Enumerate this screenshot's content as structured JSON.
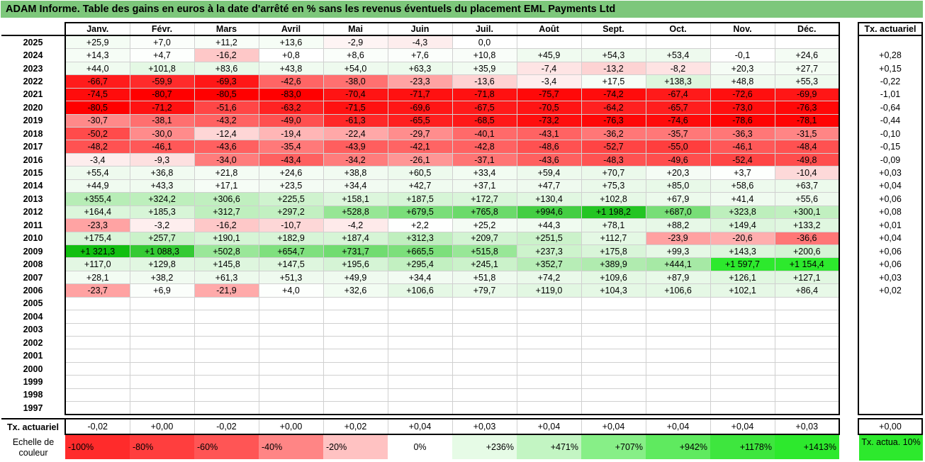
{
  "title": "ADAM Informe. Table des gains en euros à la date d'arrêté en % sans les revenus éventuels du placement EML Payments Ltd",
  "months": [
    "Janv.",
    "Févr.",
    "Mars",
    "Avril",
    "Mai",
    "Juin",
    "Juil.",
    "Août",
    "Sept.",
    "Oct.",
    "Nov.",
    "Déc."
  ],
  "annual_header": "Tx. actuariel",
  "rows": [
    {
      "year": "2025",
      "values": [
        "+25,9",
        "+7,0",
        "+11,2",
        "+13,6",
        "-2,9",
        "-4,3",
        "0,0",
        "",
        "",
        "",
        "",
        ""
      ],
      "colors": [
        "#f4fcf4",
        "#fbfefb",
        "#f8fdf8",
        "#f6fdf6",
        "#fef4f4",
        "#fdeded",
        "#ffffff",
        "",
        "",
        "",
        "",
        ""
      ],
      "annual": "",
      "annual_color": ""
    },
    {
      "year": "2024",
      "values": [
        "+14,3",
        "+4,7",
        "-16,2",
        "+0,8",
        "+8,6",
        "+7,6",
        "+10,8",
        "+45,9",
        "+54,3",
        "+53,4",
        "-0,1",
        "+24,6"
      ],
      "colors": [
        "#f6fdf6",
        "#fdfffd",
        "#fec8c8",
        "#ffffff",
        "#fafefa",
        "#fbfefb",
        "#f9fdf9",
        "#f0fbf0",
        "#eefaee",
        "#eefaee",
        "#ffffff",
        "#f4fcf4"
      ],
      "annual": "+0,28",
      "annual_color": ""
    },
    {
      "year": "2023",
      "values": [
        "+44,0",
        "+101,8",
        "+83,6",
        "+43,8",
        "+54,0",
        "+63,3",
        "+35,9",
        "-7,4",
        "-13,2",
        "-8,2",
        "+20,3",
        "+27,7"
      ],
      "colors": [
        "#f0fbf0",
        "#e4f8e4",
        "#e8f9e8",
        "#f0fbf0",
        "#eefaee",
        "#ecfaec",
        "#f1fbf1",
        "#fee4e4",
        "#fdd3d3",
        "#fee3e3",
        "#f5fcf5",
        "#f3fcf3"
      ],
      "annual": "+0,15",
      "annual_color": ""
    },
    {
      "year": "2022",
      "values": [
        "-66,7",
        "-59,9",
        "-69,3",
        "-42,6",
        "-38,0",
        "-23,3",
        "-13,6",
        "-3,4",
        "+17,5",
        "+138,3",
        "+48,8",
        "+55,3"
      ],
      "colors": [
        "#ff1c1c",
        "#ff2b2b",
        "#ff1717",
        "#ff6565",
        "#ff7070",
        "#ffa3a3",
        "#fed2d2",
        "#feeeee",
        "#f6fdf6",
        "#ddf6dd",
        "#effaef",
        "#eefaee"
      ],
      "annual": "-0,22",
      "annual_color": ""
    },
    {
      "year": "2021",
      "values": [
        "-74,5",
        "-80,7",
        "-80,5",
        "-83,0",
        "-70,4",
        "-71,7",
        "-71,8",
        "-75,7",
        "-74,2",
        "-67,4",
        "-72,6",
        "-69,9"
      ],
      "colors": [
        "#ff0c0c",
        "#ff0000",
        "#ff0000",
        "#ff0000",
        "#ff1414",
        "#ff1111",
        "#ff1111",
        "#ff0909",
        "#ff0c0c",
        "#ff1a1a",
        "#ff0f0f",
        "#ff1616"
      ],
      "annual": "-1,01",
      "annual_color": ""
    },
    {
      "year": "2020",
      "values": [
        "-80,5",
        "-71,2",
        "-51,6",
        "-63,2",
        "-71,5",
        "-69,6",
        "-67,5",
        "-70,5",
        "-64,2",
        "-65,7",
        "-73,0",
        "-76,3"
      ],
      "colors": [
        "#ff0000",
        "#ff1212",
        "#ff4646",
        "#ff2323",
        "#ff1111",
        "#ff1616",
        "#ff1a1a",
        "#ff1414",
        "#ff2121",
        "#ff1e1e",
        "#ff0f0f",
        "#ff0808"
      ],
      "annual": "-0,64",
      "annual_color": ""
    },
    {
      "year": "2019",
      "values": [
        "-30,7",
        "-38,1",
        "-43,2",
        "-49,0",
        "-61,3",
        "-65,5",
        "-68,5",
        "-73,2",
        "-76,3",
        "-74,6",
        "-78,6",
        "-78,1"
      ],
      "colors": [
        "#ff8989",
        "#ff6f6f",
        "#ff6363",
        "#ff5050",
        "#ff2828",
        "#ff1f1f",
        "#ff1818",
        "#ff0e0e",
        "#ff0808",
        "#ff0b0b",
        "#ff0303",
        "#ff0404"
      ],
      "annual": "-0,44",
      "annual_color": ""
    },
    {
      "year": "2018",
      "values": [
        "-50,2",
        "-30,0",
        "-12,4",
        "-19,4",
        "-22,4",
        "-29,7",
        "-40,1",
        "-43,1",
        "-36,2",
        "-35,7",
        "-36,3",
        "-31,5"
      ],
      "colors": [
        "#ff4b4b",
        "#ff8b8b",
        "#fed6d6",
        "#ffb6b6",
        "#ffa8a8",
        "#ff8d8d",
        "#ff6a6a",
        "#ff6363",
        "#ff7777",
        "#ff7878",
        "#ff7777",
        "#ff8585"
      ],
      "annual": "-0,10",
      "annual_color": ""
    },
    {
      "year": "2017",
      "values": [
        "-48,2",
        "-46,1",
        "-43,6",
        "-35,4",
        "-43,9",
        "-42,1",
        "-42,8",
        "-48,6",
        "-52,7",
        "-55,0",
        "-46,1",
        "-48,4"
      ],
      "colors": [
        "#ff5252",
        "#ff5858",
        "#ff6060",
        "#ff7979",
        "#ff5e5e",
        "#ff6464",
        "#ff6262",
        "#ff5151",
        "#ff4444",
        "#ff3e3e",
        "#ff5858",
        "#ff5151"
      ],
      "annual": "-0,15",
      "annual_color": ""
    },
    {
      "year": "2016",
      "values": [
        "-3,4",
        "-9,3",
        "-34,0",
        "-43,4",
        "-34,2",
        "-26,1",
        "-37,1",
        "-43,6",
        "-48,3",
        "-49,6",
        "-52,4",
        "-49,8"
      ],
      "colors": [
        "#fdeded",
        "#fde0e0",
        "#ff7c7c",
        "#ff6060",
        "#ff7c7c",
        "#ff9595",
        "#ff7474",
        "#ff6060",
        "#ff5252",
        "#ff4e4e",
        "#ff4545",
        "#ff4d4d"
      ],
      "annual": "-0,09",
      "annual_color": ""
    },
    {
      "year": "2015",
      "values": [
        "+55,4",
        "+36,8",
        "+21,8",
        "+24,6",
        "+38,8",
        "+60,5",
        "+33,4",
        "+59,4",
        "+70,7",
        "+20,3",
        "+3,7",
        "-10,4"
      ],
      "colors": [
        "#eefaee",
        "#f1fbf1",
        "#f4fcf4",
        "#f4fcf4",
        "#f1fbf1",
        "#edfaed",
        "#f2fcf2",
        "#edfaed",
        "#ebf9eb",
        "#f5fcf5",
        "#fdfffd",
        "#fdd9d9"
      ],
      "annual": "+0,03",
      "annual_color": ""
    },
    {
      "year": "2014",
      "values": [
        "+44,9",
        "+43,3",
        "+17,1",
        "+23,5",
        "+34,4",
        "+42,7",
        "+37,1",
        "+47,7",
        "+75,3",
        "+85,0",
        "+58,6",
        "+63,7"
      ],
      "colors": [
        "#f0fbf0",
        "#f0fbf0",
        "#f6fdf6",
        "#f4fcf4",
        "#f2fbf2",
        "#f0fbf0",
        "#f1fbf1",
        "#effaef",
        "#eaf9ea",
        "#e8f9e8",
        "#edfaed",
        "#ecfaec"
      ],
      "annual": "+0,04",
      "annual_color": ""
    },
    {
      "year": "2013",
      "values": [
        "+355,4",
        "+324,2",
        "+306,6",
        "+225,5",
        "+158,1",
        "+187,5",
        "+172,7",
        "+130,4",
        "+102,8",
        "+67,9",
        "+41,4",
        "+55,6"
      ],
      "colors": [
        "#b7edb6",
        "#bdefbc",
        "#c0efbf",
        "#cff3ce",
        "#dcf6dc",
        "#d6f5d6",
        "#d9f5d9",
        "#e1f7e1",
        "#e6f8e6",
        "#ecfaec",
        "#f0fbf0",
        "#eefaee"
      ],
      "annual": "+0,06",
      "annual_color": ""
    },
    {
      "year": "2012",
      "values": [
        "+164,4",
        "+185,3",
        "+312,7",
        "+297,2",
        "+528,8",
        "+679,5",
        "+765,8",
        "+994,6",
        "+1 198,2",
        "+687,0",
        "+323,8",
        "+300,1"
      ],
      "colors": [
        "#dbf6db",
        "#d7f5d7",
        "#bfefbe",
        "#c2f0c1",
        "#96e695",
        "#7ade79",
        "#6bda6a",
        "#44ce43",
        "#24c523",
        "#78de77",
        "#bdefbc",
        "#c1f0c0"
      ],
      "annual": "+0,08",
      "annual_color": ""
    },
    {
      "year": "2011",
      "values": [
        "-23,3",
        "-3,2",
        "-16,2",
        "-10,7",
        "-4,2",
        "+2,2",
        "+25,2",
        "+44,3",
        "+78,1",
        "+88,2",
        "+149,4",
        "+133,2"
      ],
      "colors": [
        "#ffa3a3",
        "#feeeee",
        "#fec8c8",
        "#fdd7d7",
        "#feeaea",
        "#fefffe",
        "#f4fcf4",
        "#f0fbf0",
        "#e9f9e9",
        "#e7f8e7",
        "#ddf6dd",
        "#e0f7e0"
      ],
      "annual": "+0,01",
      "annual_color": ""
    },
    {
      "year": "2010",
      "values": [
        "+175,4",
        "+257,7",
        "+190,1",
        "+182,9",
        "+187,4",
        "+312,3",
        "+209,7",
        "+251,5",
        "+112,7",
        "-23,9",
        "-20,6",
        "-36,6"
      ],
      "colors": [
        "#d9f5d9",
        "#caf2c9",
        "#d6f5d6",
        "#d7f5d7",
        "#d6f5d6",
        "#bfefbe",
        "#d2f4d2",
        "#cbf2ca",
        "#e4f8e4",
        "#ffa1a1",
        "#ffaeae",
        "#ff7676"
      ],
      "annual": "+0,04",
      "annual_color": ""
    },
    {
      "year": "2009",
      "values": [
        "+1 321,3",
        "+1 088,3",
        "+502,8",
        "+654,7",
        "+731,7",
        "+665,5",
        "+515,8",
        "+237,3",
        "+175,8",
        "+99,3",
        "+143,3",
        "+200,6"
      ],
      "colors": [
        "#12bf11",
        "#35ca34",
        "#9ae799",
        "#7fe07e",
        "#71dc70",
        "#7cdf7b",
        "#98e797",
        "#cdf3cc",
        "#d9f5d9",
        "#e6f8e6",
        "#ddf6dd",
        "#d4f4d4"
      ],
      "annual": "+0,06",
      "annual_color": ""
    },
    {
      "year": "2008",
      "values": [
        "+117,0",
        "+129,8",
        "+145,8",
        "+147,5",
        "+195,6",
        "+295,4",
        "+245,1",
        "+352,7",
        "+389,9",
        "+444,1",
        "+1 597,7",
        "+1 154,4"
      ],
      "colors": [
        "#e3f7e3",
        "#e1f7e1",
        "#def6de",
        "#def6de",
        "#d5f4d5",
        "#c2f0c1",
        "#cbf2ca",
        "#b7edb6",
        "#b0ebaf",
        "#a6e9a5",
        "#2de92d",
        "#2de92d"
      ],
      "annual": "+0,06",
      "annual_color": ""
    },
    {
      "year": "2007",
      "values": [
        "+28,1",
        "+38,2",
        "+61,3",
        "+51,3",
        "+49,9",
        "+34,4",
        "+51,8",
        "+74,2",
        "+109,6",
        "+87,9",
        "+126,1",
        "+127,1"
      ],
      "colors": [
        "#f3fcf3",
        "#f1fbf1",
        "#edfaed",
        "#effaef",
        "#effaef",
        "#f2fbf2",
        "#effaef",
        "#eaf9ea",
        "#e4f8e4",
        "#e8f9e8",
        "#e1f7e1",
        "#e1f7e1"
      ],
      "annual": "+0,03",
      "annual_color": ""
    },
    {
      "year": "2006",
      "values": [
        "-23,7",
        "+6,9",
        "-21,9",
        "+4,0",
        "+32,6",
        "+106,6",
        "+79,7",
        "+119,0",
        "+104,3",
        "+106,6",
        "+102,1",
        "+86,4"
      ],
      "colors": [
        "#ffa2a2",
        "#fbfefb",
        "#ffaaaa",
        "#fdfffd",
        "#f2fcf2",
        "#e5f8e5",
        "#e9f9e9",
        "#e2f7e2",
        "#e5f8e5",
        "#e5f8e5",
        "#e6f8e6",
        "#e8f9e8"
      ],
      "annual": "+0,02",
      "annual_color": ""
    },
    {
      "year": "2005",
      "values": [
        "",
        "",
        "",
        "",
        "",
        "",
        "",
        "",
        "",
        "",
        "",
        ""
      ],
      "colors": [],
      "annual": "",
      "annual_color": ""
    },
    {
      "year": "2004",
      "values": [
        "",
        "",
        "",
        "",
        "",
        "",
        "",
        "",
        "",
        "",
        "",
        ""
      ],
      "colors": [],
      "annual": "",
      "annual_color": ""
    },
    {
      "year": "2003",
      "values": [
        "",
        "",
        "",
        "",
        "",
        "",
        "",
        "",
        "",
        "",
        "",
        ""
      ],
      "colors": [],
      "annual": "",
      "annual_color": ""
    },
    {
      "year": "2002",
      "values": [
        "",
        "",
        "",
        "",
        "",
        "",
        "",
        "",
        "",
        "",
        "",
        ""
      ],
      "colors": [],
      "annual": "",
      "annual_color": ""
    },
    {
      "year": "2001",
      "values": [
        "",
        "",
        "",
        "",
        "",
        "",
        "",
        "",
        "",
        "",
        "",
        ""
      ],
      "colors": [],
      "annual": "",
      "annual_color": ""
    },
    {
      "year": "2000",
      "values": [
        "",
        "",
        "",
        "",
        "",
        "",
        "",
        "",
        "",
        "",
        "",
        ""
      ],
      "colors": [],
      "annual": "",
      "annual_color": ""
    },
    {
      "year": "1999",
      "values": [
        "",
        "",
        "",
        "",
        "",
        "",
        "",
        "",
        "",
        "",
        "",
        ""
      ],
      "colors": [],
      "annual": "",
      "annual_color": ""
    },
    {
      "year": "1998",
      "values": [
        "",
        "",
        "",
        "",
        "",
        "",
        "",
        "",
        "",
        "",
        "",
        ""
      ],
      "colors": [],
      "annual": "",
      "annual_color": ""
    },
    {
      "year": "1997",
      "values": [
        "",
        "",
        "",
        "",
        "",
        "",
        "",
        "",
        "",
        "",
        "",
        ""
      ],
      "colors": [],
      "annual": "",
      "annual_color": ""
    }
  ],
  "summary": {
    "label": "Tx. actuariel",
    "values": [
      "-0,02",
      "+0,00",
      "-0,02",
      "+0,00",
      "+0,02",
      "+0,04",
      "+0,03",
      "+0,04",
      "+0,04",
      "+0,04",
      "+0,04",
      "+0,03"
    ],
    "annual": "+0,00"
  },
  "legend": {
    "label": "Echelle de couleur",
    "items": [
      {
        "text": "-100%",
        "color": "#ff2b2b",
        "align": "left"
      },
      {
        "text": "-80%",
        "color": "#ff3e3e",
        "align": "left"
      },
      {
        "text": "-60%",
        "color": "#ff5555",
        "align": "left"
      },
      {
        "text": "-40%",
        "color": "#ff8585",
        "align": "left"
      },
      {
        "text": "-20%",
        "color": "#ffc2c2",
        "align": "left"
      },
      {
        "text": "0%",
        "color": "#ffffff",
        "align": "center"
      },
      {
        "text": "+236%",
        "color": "#e6fbe6",
        "align": "right"
      },
      {
        "text": "+471%",
        "color": "#c3f5c3",
        "align": "right"
      },
      {
        "text": "+707%",
        "color": "#87ef87",
        "align": "right"
      },
      {
        "text": "+942%",
        "color": "#5fea5f",
        "align": "right"
      },
      {
        "text": "+1178%",
        "color": "#3ee63e",
        "align": "right"
      },
      {
        "text": "+1413%",
        "color": "#2de92d",
        "align": "right"
      }
    ],
    "actuarial_label": "Tx. actua. 10%",
    "actuarial_color": "#2de92d"
  }
}
